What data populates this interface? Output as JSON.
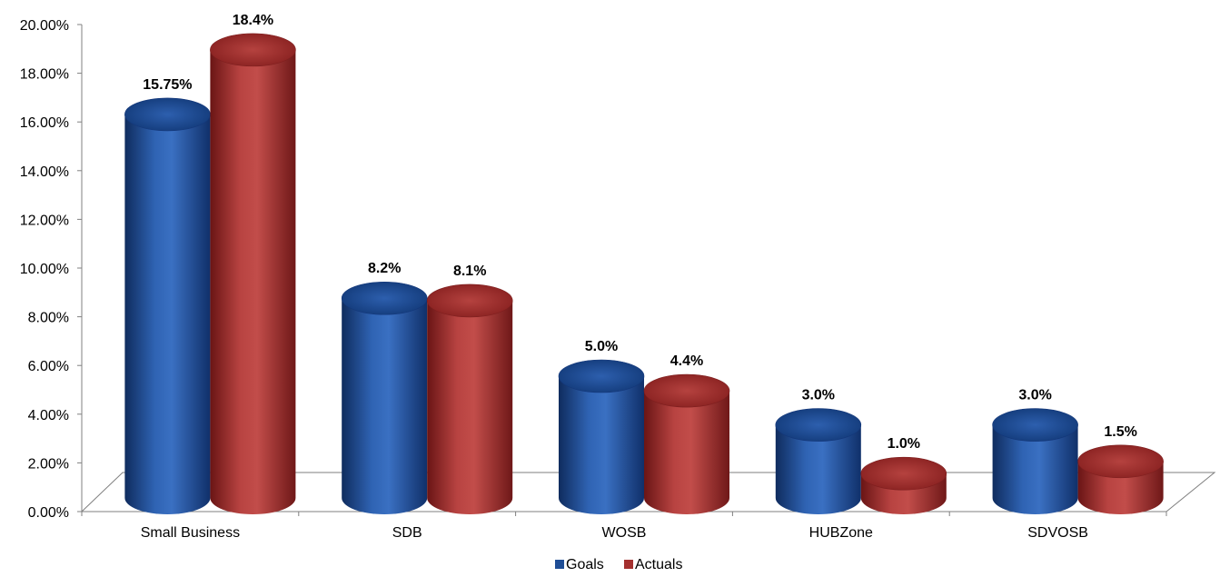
{
  "chart_data": {
    "type": "bar",
    "style": "3d-cylinder",
    "categories": [
      "Small Business",
      "SDB",
      "WOSB",
      "HUBZone",
      "SDVOSB"
    ],
    "series": [
      {
        "name": "Goals",
        "color": "#1f4e96",
        "values": [
          15.75,
          8.2,
          5.0,
          3.0,
          3.0
        ],
        "labels": [
          "15.75%",
          "8.2%",
          "5.0%",
          "3.0%",
          "3.0%"
        ]
      },
      {
        "name": "Actuals",
        "color": "#a4302f",
        "values": [
          18.4,
          8.1,
          4.4,
          1.0,
          1.5
        ],
        "labels": [
          "18.4%",
          "8.1%",
          "4.4%",
          "1.0%",
          "1.5%"
        ]
      }
    ],
    "yticks": [
      "0.00%",
      "2.00%",
      "4.00%",
      "6.00%",
      "8.00%",
      "10.00%",
      "12.00%",
      "14.00%",
      "16.00%",
      "18.00%",
      "20.00%"
    ],
    "ylim": [
      0,
      20
    ],
    "legend_position": "bottom-center",
    "grid": false
  }
}
